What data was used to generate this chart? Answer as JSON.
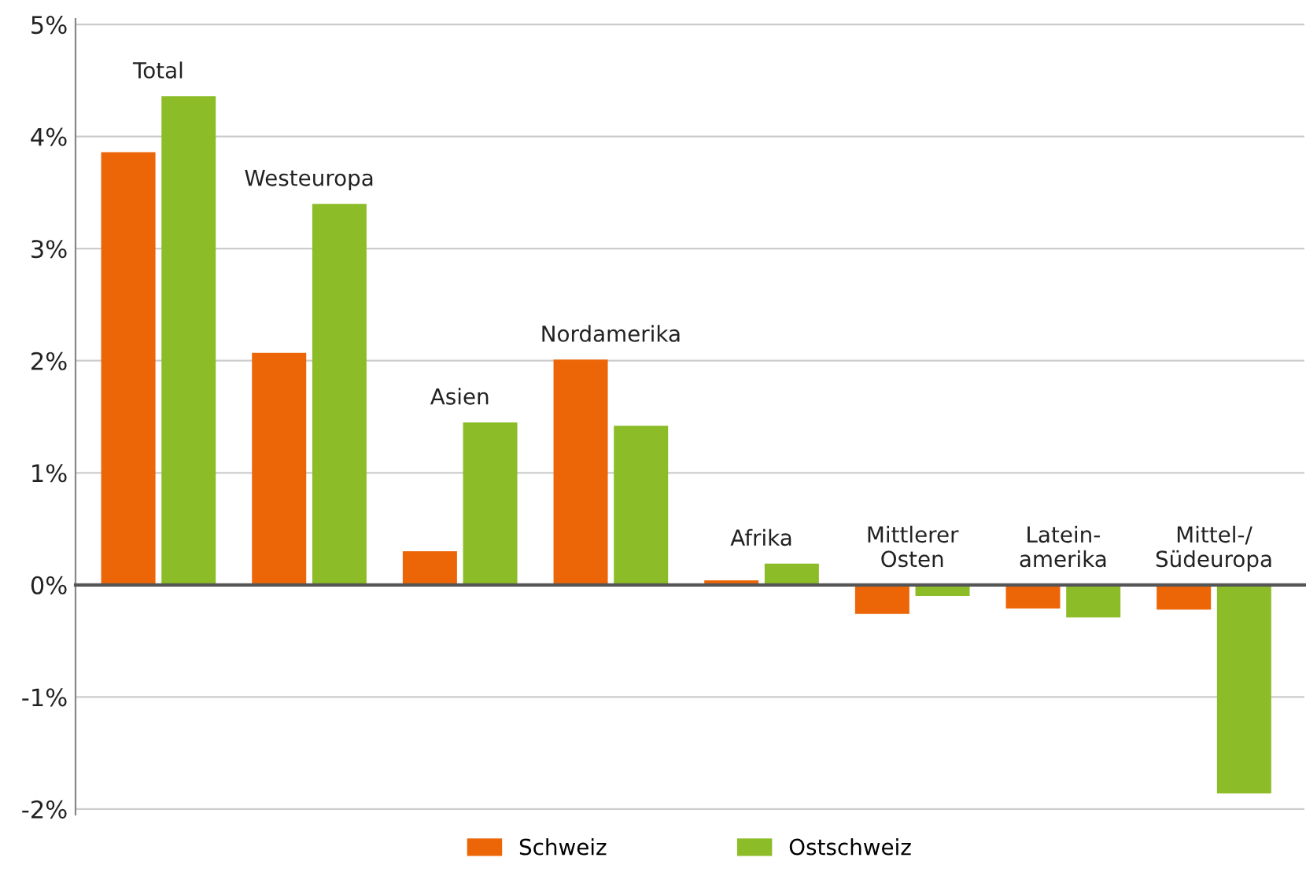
{
  "chart_data": {
    "type": "bar",
    "categories": [
      "Total",
      "Westeuropa",
      "Asien",
      "Nordamerika",
      "Afrika",
      "Mittlerer\nOsten",
      "Latein-\namerika",
      "Mittel-/\nSüdeuropa"
    ],
    "series": [
      {
        "name": "Schweiz",
        "color": "#ec6608",
        "values": [
          3.86,
          2.07,
          0.3,
          2.01,
          0.04,
          -0.26,
          -0.21,
          -0.22
        ]
      },
      {
        "name": "Ostschweiz",
        "color": "#8cbd28",
        "values": [
          4.36,
          3.4,
          1.45,
          1.42,
          0.19,
          -0.1,
          -0.29,
          -1.86
        ]
      }
    ],
    "ylim": [
      -2.05,
      5.05
    ],
    "yticks": [
      {
        "value": -2,
        "label": "-2%"
      },
      {
        "value": -1,
        "label": "-1%"
      },
      {
        "value": 0,
        "label": "0%"
      },
      {
        "value": 1,
        "label": "1%"
      },
      {
        "value": 2,
        "label": "2%"
      },
      {
        "value": 3,
        "label": "3%"
      },
      {
        "value": 4,
        "label": "4%"
      },
      {
        "value": 5,
        "label": "5%"
      }
    ],
    "grid": "y",
    "legend": "bottom"
  }
}
